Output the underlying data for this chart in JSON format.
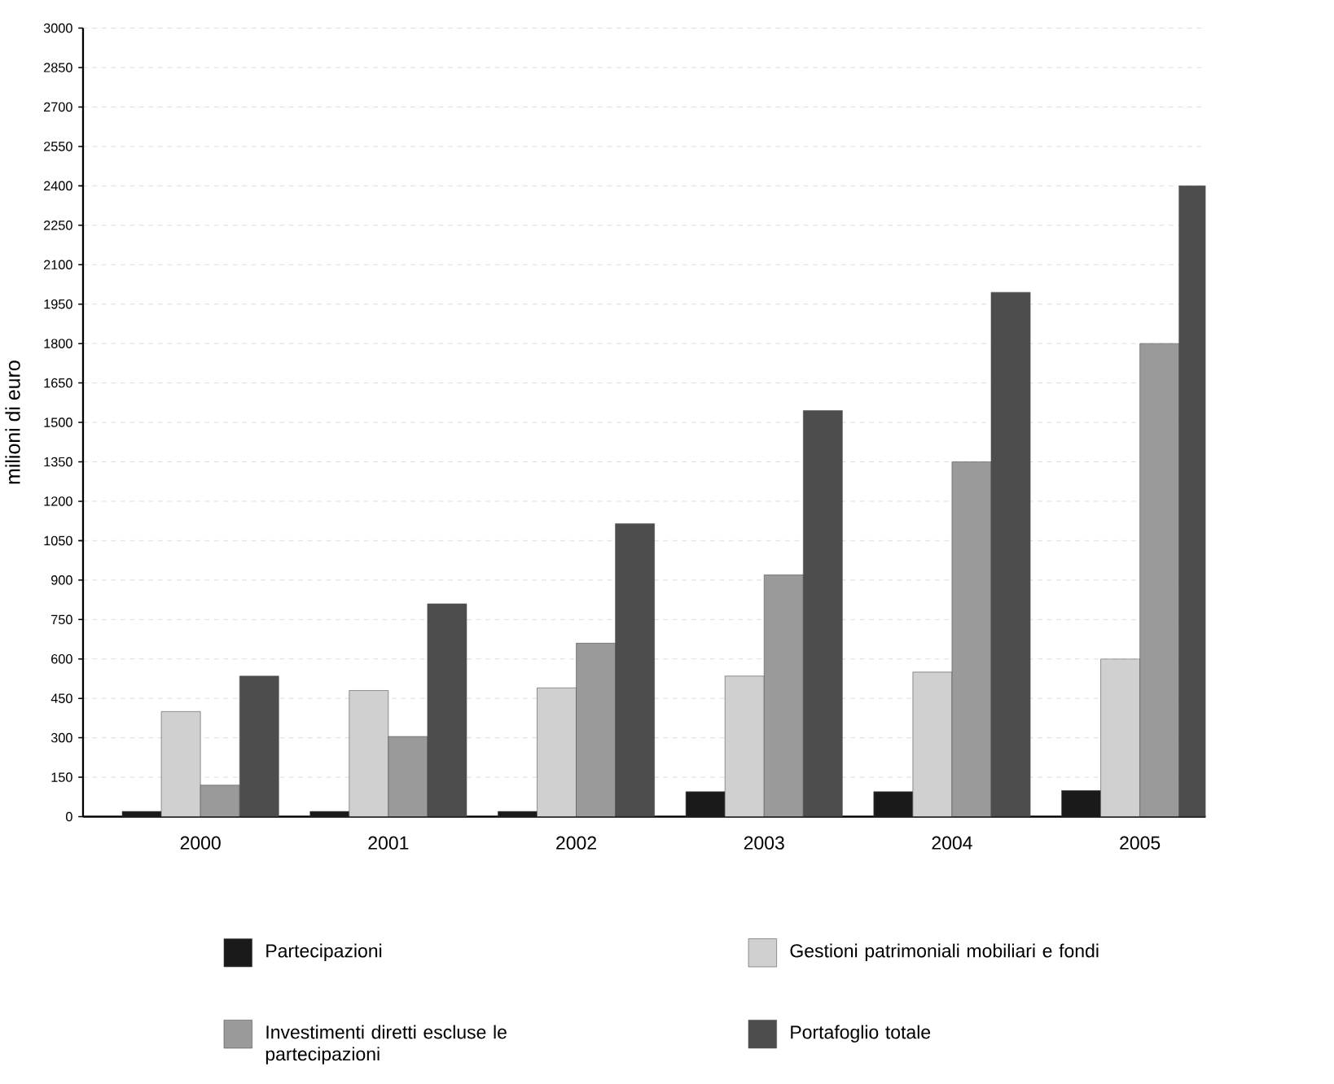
{
  "chart_data": {
    "type": "bar",
    "ylabel": "milioni di euro",
    "categories": [
      "2000",
      "2001",
      "2002",
      "2003",
      "2004",
      "2005"
    ],
    "series": [
      {
        "name": "Partecipazioni",
        "color": "#1a1a1a",
        "values": [
          20,
          20,
          20,
          95,
          95,
          100
        ]
      },
      {
        "name": "Gestioni patrimoniali mobiliari e fondi",
        "color": "#d0d0d0",
        "values": [
          400,
          480,
          490,
          535,
          550,
          600
        ]
      },
      {
        "name": "Investimenti diretti escluse le partecipazioni",
        "color": "#9a9a9a",
        "values": [
          120,
          305,
          660,
          920,
          1350,
          1800
        ]
      },
      {
        "name": "Portafoglio totale",
        "color": "#4d4d4d",
        "values": [
          535,
          810,
          1115,
          1545,
          1995,
          2400
        ]
      }
    ],
    "ylim": [
      0,
      3000
    ],
    "yticks": [
      0,
      150,
      300,
      450,
      600,
      750,
      900,
      1050,
      1200,
      1350,
      1500,
      1650,
      1800,
      1950,
      2100,
      2250,
      2400,
      2550,
      2700,
      2850,
      3000
    ],
    "grid": "y",
    "legend": "bottom"
  }
}
